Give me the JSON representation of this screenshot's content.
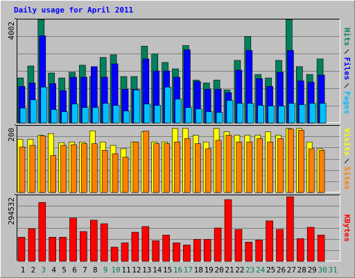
{
  "chart_data": [
    {
      "type": "bar",
      "title": "Daily usage for April 2011",
      "series": [
        {
          "name": "Hits",
          "color": "#00805c",
          "values": [
            1730,
            2190,
            3975,
            1920,
            1730,
            1950,
            2220,
            1785,
            2515,
            2620,
            1785,
            1785,
            2950,
            2650,
            2325,
            2080,
            2975,
            1650,
            1540,
            1650,
            1270,
            2405,
            3325,
            1865,
            1730,
            2405,
            3975,
            2165,
            1865,
            2460,
            null
          ]
        },
        {
          "name": "Files",
          "color": "#0000ff",
          "values": [
            1405,
            1540,
            3350,
            1515,
            1245,
            1760,
            1760,
            2165,
            1760,
            2270,
            1300,
            1300,
            2460,
            2000,
            2000,
            1760,
            2810,
            1595,
            1300,
            1300,
            1165,
            2030,
            2785,
            1705,
            1405,
            1950,
            2785,
            1620,
            1570,
            1840,
            null
          ]
        },
        {
          "name": "Pages",
          "color": "#00c0ff",
          "values": [
            570,
            890,
            1380,
            515,
            435,
            730,
            595,
            595,
            755,
            675,
            460,
            1270,
            730,
            675,
            1380,
            920,
            595,
            540,
            435,
            405,
            865,
            755,
            755,
            675,
            650,
            650,
            755,
            705,
            755,
            755,
            null
          ]
        }
      ],
      "ylim": [
        0,
        4002
      ],
      "yticks": [
        4002
      ]
    },
    {
      "type": "bar",
      "series": [
        {
          "name": "Visits",
          "color": "#ffff00",
          "values": [
            158,
            158,
            170,
            175,
            148,
            150,
            150,
            183,
            150,
            140,
            130,
            150,
            180,
            150,
            150,
            190,
            190,
            170,
            150,
            190,
            180,
            170,
            170,
            170,
            180,
            170,
            190,
            190,
            150,
            130,
            null
          ]
        },
        {
          "name": "Sites",
          "color": "#ff8000",
          "values": [
            135,
            140,
            168,
            110,
            140,
            142,
            145,
            145,
            125,
            115,
            105,
            150,
            182,
            145,
            145,
            150,
            160,
            145,
            130,
            155,
            170,
            150,
            150,
            160,
            150,
            160,
            188,
            185,
            130,
            125,
            null
          ]
        }
      ],
      "ylim": [
        0,
        200
      ],
      "yticks": [
        200
      ]
    },
    {
      "type": "bar",
      "categories": [
        "1",
        "2",
        "3",
        "4",
        "5",
        "6",
        "7",
        "8",
        "9",
        "10",
        "11",
        "12",
        "13",
        "14",
        "15",
        "16",
        "17",
        "18",
        "19",
        "20",
        "21",
        "22",
        "23",
        "24",
        "25",
        "26",
        "27",
        "28",
        "29",
        "30",
        "31"
      ],
      "category_colors": [
        "#000000",
        "#000000",
        "#00805c",
        "#000000",
        "#000000",
        "#000000",
        "#000000",
        "#000000",
        "#00805c",
        "#00805c",
        "#000000",
        "#000000",
        "#000000",
        "#000000",
        "#000000",
        "#00805c",
        "#00805c",
        "#000000",
        "#000000",
        "#000000",
        "#000000",
        "#000000",
        "#00805c",
        "#00805c",
        "#000000",
        "#000000",
        "#000000",
        "#000000",
        "#000000",
        "#00805c",
        "#00805c"
      ],
      "series": [
        {
          "name": "KBytes",
          "color": "#ff0000",
          "values": [
            106500,
            144100,
            260000,
            106500,
            106500,
            191100,
            131600,
            181700,
            166000,
            62700,
            81500,
            128500,
            153600,
            90900,
            116000,
            81500,
            72100,
            97200,
            97200,
            147200,
            272500,
            141000,
            84600,
            94000,
            178600,
            141000,
            285100,
            100300,
            150400,
            116000,
            null
          ]
        }
      ],
      "ylim": [
        0,
        294532
      ],
      "yticks": [
        294532
      ]
    }
  ]
}
